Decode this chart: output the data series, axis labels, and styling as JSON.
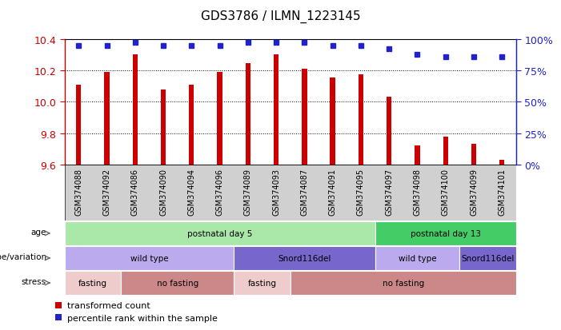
{
  "title": "GDS3786 / ILMN_1223145",
  "samples": [
    "GSM374088",
    "GSM374092",
    "GSM374086",
    "GSM374090",
    "GSM374094",
    "GSM374096",
    "GSM374089",
    "GSM374093",
    "GSM374087",
    "GSM374091",
    "GSM374095",
    "GSM374097",
    "GSM374098",
    "GSM374100",
    "GSM374099",
    "GSM374101"
  ],
  "bar_values": [
    10.11,
    10.19,
    10.3,
    10.08,
    10.11,
    10.19,
    10.245,
    10.3,
    10.21,
    10.155,
    10.175,
    10.03,
    9.72,
    9.78,
    9.73,
    9.63
  ],
  "percentile_values": [
    95,
    95,
    97,
    95,
    95,
    95,
    97,
    97,
    97,
    95,
    95,
    92,
    88,
    86,
    86,
    86
  ],
  "ylim": [
    9.6,
    10.4
  ],
  "yticks": [
    9.6,
    9.8,
    10.0,
    10.2,
    10.4
  ],
  "y2ticks": [
    0,
    25,
    50,
    75,
    100
  ],
  "bar_color": "#cc0000",
  "dot_color": "#2222cc",
  "bar_width": 0.18,
  "age_row": {
    "label": "age",
    "segments": [
      {
        "text": "postnatal day 5",
        "start": 0,
        "end": 11,
        "color": "#aae8aa"
      },
      {
        "text": "postnatal day 13",
        "start": 11,
        "end": 16,
        "color": "#44cc66"
      }
    ]
  },
  "genotype_row": {
    "label": "genotype/variation",
    "segments": [
      {
        "text": "wild type",
        "start": 0,
        "end": 6,
        "color": "#bbaaee"
      },
      {
        "text": "Snord116del",
        "start": 6,
        "end": 11,
        "color": "#7766cc"
      },
      {
        "text": "wild type",
        "start": 11,
        "end": 14,
        "color": "#bbaaee"
      },
      {
        "text": "Snord116del",
        "start": 14,
        "end": 16,
        "color": "#7766cc"
      }
    ]
  },
  "stress_row": {
    "label": "stress",
    "segments": [
      {
        "text": "fasting",
        "start": 0,
        "end": 2,
        "color": "#eecccc"
      },
      {
        "text": "no fasting",
        "start": 2,
        "end": 6,
        "color": "#cc8888"
      },
      {
        "text": "fasting",
        "start": 6,
        "end": 8,
        "color": "#eecccc"
      },
      {
        "text": "no fasting",
        "start": 8,
        "end": 16,
        "color": "#cc8888"
      }
    ]
  },
  "legend_items": [
    {
      "color": "#cc0000",
      "label": "transformed count"
    },
    {
      "color": "#2222cc",
      "label": "percentile rank within the sample"
    }
  ]
}
